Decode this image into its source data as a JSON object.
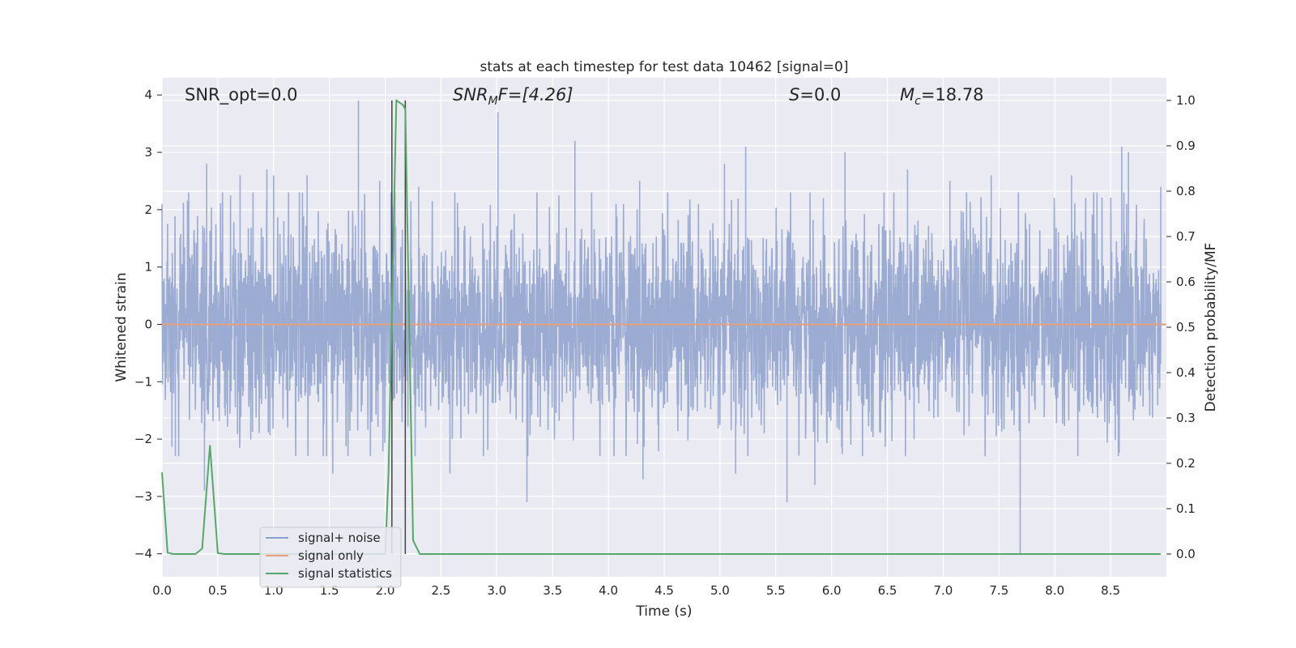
{
  "chart_data": {
    "type": "line",
    "title": "stats at each timestep for test data 10462 [signal=0]",
    "xlabel": "Time (s)",
    "ylabel": "Whitened strain",
    "y2label": "Detection probability/MF",
    "xlim": [
      0,
      9.0
    ],
    "ylim": [
      -4.4,
      4.3
    ],
    "y2lim": [
      -0.05,
      1.05
    ],
    "x_ticks": [
      "0.0",
      "0.5",
      "1.0",
      "1.5",
      "2.0",
      "2.5",
      "3.0",
      "3.5",
      "4.0",
      "4.5",
      "5.0",
      "5.5",
      "6.0",
      "6.5",
      "7.0",
      "7.5",
      "8.0",
      "8.5"
    ],
    "y_ticks": [
      "−4",
      "−3",
      "−2",
      "−1",
      "0",
      "1",
      "2",
      "3",
      "4"
    ],
    "y2_ticks": [
      "0.0",
      "0.1",
      "0.2",
      "0.3",
      "0.4",
      "0.5",
      "0.6",
      "0.7",
      "0.8",
      "0.9",
      "1.0"
    ],
    "grid": true,
    "legend_position": "lower-left",
    "annotations": {
      "snr_opt": "SNR_opt=0.0",
      "snr_mf_prefix": "SNR",
      "snr_mf_sub": "M",
      "snr_mf_suffix": "F=[4.26]",
      "s_prefix": "S",
      "s_suffix": "=0.0",
      "mc_prefix": "M",
      "mc_sub": "c",
      "mc_suffix": "=18.78"
    },
    "vertical_markers_x": [
      2.06,
      2.18
    ],
    "series": [
      {
        "name": "signal+ noise",
        "color": "#8da0cb",
        "axis": "left",
        "style": "dense-noise",
        "envelope_typical": 1.6,
        "peaks": [
          {
            "x": 0.12,
            "y": -2.3
          },
          {
            "x": 0.4,
            "y": 2.8
          },
          {
            "x": 0.38,
            "y": -2.9
          },
          {
            "x": 0.7,
            "y": 2.6
          },
          {
            "x": 0.94,
            "y": 2.7
          },
          {
            "x": 1.0,
            "y": 2.6
          },
          {
            "x": 1.3,
            "y": 2.6
          },
          {
            "x": 1.53,
            "y": -2.6
          },
          {
            "x": 1.76,
            "y": 3.9
          },
          {
            "x": 1.95,
            "y": 2.5
          },
          {
            "x": 2.3,
            "y": 2.4
          },
          {
            "x": 2.58,
            "y": -2.6
          },
          {
            "x": 2.88,
            "y": -2.3
          },
          {
            "x": 3.01,
            "y": 3.7
          },
          {
            "x": 3.27,
            "y": -3.1
          },
          {
            "x": 3.7,
            "y": 3.2
          },
          {
            "x": 4.28,
            "y": 2.5
          },
          {
            "x": 4.31,
            "y": -2.7
          },
          {
            "x": 5.04,
            "y": 2.8
          },
          {
            "x": 5.14,
            "y": -2.6
          },
          {
            "x": 5.23,
            "y": 3.1
          },
          {
            "x": 5.6,
            "y": -3.1
          },
          {
            "x": 5.85,
            "y": -2.8
          },
          {
            "x": 6.12,
            "y": 3.0
          },
          {
            "x": 6.47,
            "y": 2.3
          },
          {
            "x": 6.68,
            "y": 2.7
          },
          {
            "x": 7.06,
            "y": 2.5
          },
          {
            "x": 7.43,
            "y": 2.6
          },
          {
            "x": 7.69,
            "y": -4.0
          },
          {
            "x": 8.15,
            "y": 2.6
          },
          {
            "x": 8.6,
            "y": 3.1
          },
          {
            "x": 8.66,
            "y": 3.0
          },
          {
            "x": 8.95,
            "y": 2.4
          }
        ]
      },
      {
        "name": "signal only",
        "color": "#e5a07e",
        "axis": "left",
        "x": [
          0,
          9.0
        ],
        "y": [
          0,
          0
        ]
      },
      {
        "name": "signal statistics",
        "color": "#55a868",
        "axis": "right",
        "x": [
          0,
          0.05,
          0.1,
          0.3,
          0.36,
          0.43,
          0.5,
          0.56,
          1.5,
          2.0,
          2.03,
          2.1,
          2.16,
          2.18,
          2.25,
          2.31,
          8.95
        ],
        "y": [
          0.18,
          0.003,
          0.0,
          0.0,
          0.012,
          0.24,
          0.002,
          0.0,
          0.0,
          0.0,
          0.18,
          1.0,
          0.99,
          0.98,
          0.03,
          0.0,
          0.0
        ]
      }
    ]
  }
}
